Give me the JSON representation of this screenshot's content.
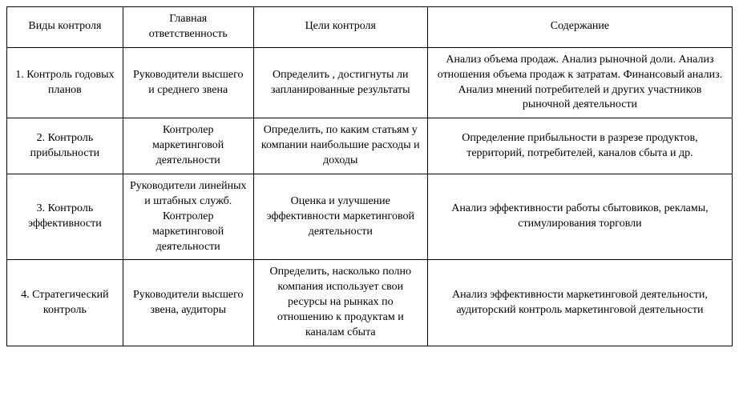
{
  "table": {
    "background_color": "#ffffff",
    "border_color": "#000000",
    "text_color": "#000000",
    "font_family": "Times New Roman",
    "font_size_pt": 11,
    "column_widths_pct": [
      16,
      18,
      24,
      42
    ],
    "columns": [
      "Виды контроля",
      "Главная ответственность",
      "Цели контроля",
      "Содержание"
    ],
    "rows": [
      {
        "type": "1. Контроль годовых планов",
        "responsibility": "Руководители высшего и среднего звена",
        "goal": "Определить , достигнуты ли запланированные результаты",
        "content": "Анализ объема продаж. Анализ рыночной доли. Анализ отношения объема продаж к затратам. Финансовый анализ. Анализ мнений потребителей и других участников рыночной деятельности"
      },
      {
        "type": "2. Контроль прибыльности",
        "responsibility": "Контролер маркетинговой деятельности",
        "goal": "Определить, по каким статьям у компании наибольшие расходы и доходы",
        "content": "Определение прибыльности в разрезе продуктов, территорий, потребителей, каналов сбыта и др."
      },
      {
        "type": "3. Контроль эффективности",
        "responsibility": "Руководители линейных и штабных служб. Контролер маркетинговой деятельности",
        "goal": "Оценка и улучшение эффективности маркетинговой деятельности",
        "content": "Анализ эффективности работы сбытовиков, рекламы, стимулирования торговли"
      },
      {
        "type": "4. Стратегический контроль",
        "responsibility": "Руководители высшего звена, аудиторы",
        "goal": "Определить, насколько полно компания использует свои ресурсы на рынках по отношению к продуктам и каналам сбыта",
        "content": "Анализ эффективности маркетинговой деятельности, аудиторский контроль маркетинговой деятельности"
      }
    ]
  }
}
